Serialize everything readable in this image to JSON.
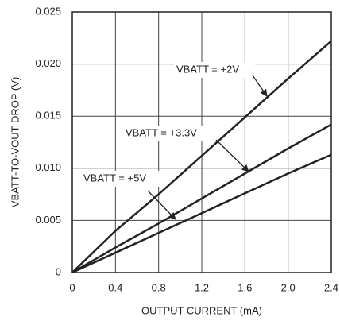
{
  "chart_data": {
    "type": "line",
    "x": [
      0,
      0.4,
      0.8,
      1.2,
      1.6,
      2.0,
      2.4
    ],
    "series": [
      {
        "name": "VBATT = +2V",
        "color": "#222222",
        "values": [
          0,
          0.004,
          0.0075,
          0.0112,
          0.0149,
          0.0186,
          0.0222
        ]
      },
      {
        "name": "VBATT = +3.3V",
        "color": "#222222",
        "values": [
          0,
          0.0024,
          0.0047,
          0.0071,
          0.0095,
          0.0119,
          0.0142
        ]
      },
      {
        "name": "VBATT = +5V",
        "color": "#222222",
        "values": [
          0,
          0.0019,
          0.0038,
          0.0057,
          0.0076,
          0.0095,
          0.0113
        ]
      }
    ],
    "xlim": [
      0,
      2.4
    ],
    "ylim": [
      0,
      0.025
    ],
    "xticks": [
      0,
      0.4,
      0.8,
      1.2,
      1.6,
      {
        "value": 2,
        "label": "2.0"
      },
      2.4
    ],
    "yticks": [
      0,
      0.005,
      {
        "value": 0.01,
        "label": "0.010"
      },
      0.015,
      {
        "value": 0.02,
        "label": "0.020"
      },
      0.025
    ],
    "x_label": "OUTPUT CURRENT (mA)",
    "y_label": "VBATT-TO-VOUT DROP (V)",
    "grid": true
  }
}
